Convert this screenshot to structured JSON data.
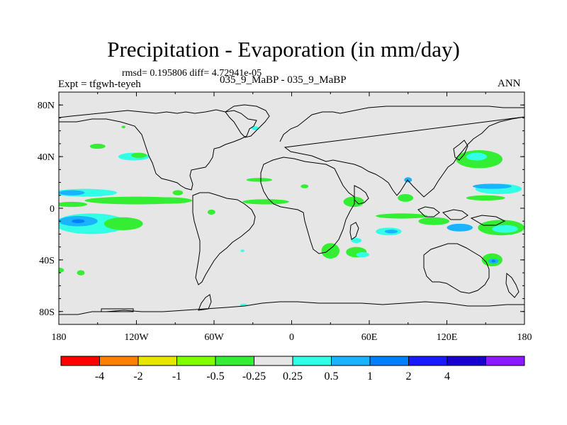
{
  "title": "Precipitation - Evaporation (in mm/day)",
  "stats": "rmsd= 0.195806 diff= 4.72941e-05",
  "expt_label": "Expt = tfgwh-teyeh",
  "subtitle": "035_9_MaBP - 035_9_MaBP",
  "season": "ANN",
  "map": {
    "projection": "cylindrical equidistant",
    "lon_range": [
      -180,
      180
    ],
    "lat_range": [
      -90,
      90
    ],
    "background_color": "#e6e6e6",
    "coastline_color": "#000000"
  },
  "y_ticks": [
    {
      "lat": 80,
      "label": "80N"
    },
    {
      "lat": 40,
      "label": "40N"
    },
    {
      "lat": 0,
      "label": "0"
    },
    {
      "lat": -40,
      "label": "40S"
    },
    {
      "lat": -80,
      "label": "80S"
    }
  ],
  "x_ticks": [
    {
      "lon": -180,
      "label": "180"
    },
    {
      "lon": -120,
      "label": "120W"
    },
    {
      "lon": -60,
      "label": "60W"
    },
    {
      "lon": 0,
      "label": "0"
    },
    {
      "lon": 60,
      "label": "60E"
    },
    {
      "lon": 120,
      "label": "120E"
    },
    {
      "lon": 180,
      "label": "180"
    }
  ],
  "colorbar": {
    "colors": [
      "#ff0000",
      "#ff8000",
      "#e6e600",
      "#80ff00",
      "#33ee33",
      "#e6e6e6",
      "#33ffe6",
      "#1ab3ff",
      "#0080ff",
      "#1a1aff",
      "#1a00cc",
      "#8c1aff"
    ],
    "labels": [
      "-4",
      "-2",
      "-1",
      "-0.5",
      "-0.25",
      "0.25",
      "0.5",
      "1",
      "2",
      "4"
    ]
  },
  "fields": [
    {
      "name": "itcz-pacific-green",
      "color": "#33ee33",
      "lon": -120,
      "lat": 6,
      "rx": 40,
      "ry": 3
    },
    {
      "name": "itcz-pacific-east-green",
      "color": "#33ee33",
      "lon": -95,
      "lat": 6,
      "rx": 18,
      "ry": 2.5
    },
    {
      "name": "north-subtropic-pacific-cyan",
      "color": "#33ffe6",
      "lon": -160,
      "lat": 12,
      "rx": 25,
      "ry": 3
    },
    {
      "name": "north-subtropic-pacific-blue",
      "color": "#1ab3ff",
      "lon": -170,
      "lat": 12,
      "rx": 10,
      "ry": 2
    },
    {
      "name": "itcz-pacific-west-green",
      "color": "#33ee33",
      "lon": -170,
      "lat": 3,
      "rx": 12,
      "ry": 2
    },
    {
      "name": "south-pacific-cyan",
      "color": "#33ffe6",
      "lon": -155,
      "lat": -12,
      "rx": 28,
      "ry": 8
    },
    {
      "name": "south-pacific-blue",
      "color": "#1ab3ff",
      "lon": -165,
      "lat": -10,
      "rx": 15,
      "ry": 4
    },
    {
      "name": "south-pacific-deep",
      "color": "#0080ff",
      "lon": -165,
      "lat": -10,
      "rx": 5,
      "ry": 1.5
    },
    {
      "name": "south-pacific-east-green",
      "color": "#33ee33",
      "lon": -130,
      "lat": -12,
      "rx": 15,
      "ry": 5
    },
    {
      "name": "north-pacific-green",
      "color": "#33ee33",
      "lon": -150,
      "lat": 48,
      "rx": 6,
      "ry": 2
    },
    {
      "name": "north-pacific-cyan",
      "color": "#33ffe6",
      "lon": -122,
      "lat": 40,
      "rx": 12,
      "ry": 3
    },
    {
      "name": "north-pacific-green-2",
      "color": "#33ee33",
      "lon": -118,
      "lat": 41,
      "rx": 6,
      "ry": 2
    },
    {
      "name": "aleutian-green",
      "color": "#33ee33",
      "lon": -180,
      "lat": -48,
      "rx": 4,
      "ry": 2
    },
    {
      "name": "south-pacific-small",
      "color": "#33ee33",
      "lon": -163,
      "lat": -50,
      "rx": 3,
      "ry": 2
    },
    {
      "name": "atlantic-itcz-green",
      "color": "#33ee33",
      "lon": -20,
      "lat": 5,
      "rx": 18,
      "ry": 2
    },
    {
      "name": "atlantic-green",
      "color": "#33ee33",
      "lon": -25,
      "lat": 22,
      "rx": 10,
      "ry": 1.5
    },
    {
      "name": "amazon-green",
      "color": "#33ee33",
      "lon": -62,
      "lat": -3,
      "rx": 3,
      "ry": 2
    },
    {
      "name": "africa-green",
      "color": "#33ee33",
      "lon": 48,
      "lat": 5,
      "rx": 8,
      "ry": 4
    },
    {
      "name": "indian-equatorial-green",
      "color": "#33ee33",
      "lon": 85,
      "lat": -6,
      "rx": 20,
      "ry": 2
    },
    {
      "name": "indian-green",
      "color": "#33ee33",
      "lon": 88,
      "lat": 8,
      "rx": 6,
      "ry": 3
    },
    {
      "name": "indian-south-cyan",
      "color": "#33ffe6",
      "lon": 75,
      "lat": -18,
      "rx": 10,
      "ry": 3
    },
    {
      "name": "indian-south-blue",
      "color": "#1ab3ff",
      "lon": 77,
      "lat": -18,
      "rx": 5,
      "ry": 1.5
    },
    {
      "name": "maritime-green",
      "color": "#33ee33",
      "lon": 110,
      "lat": -10,
      "rx": 12,
      "ry": 3
    },
    {
      "name": "maritime-blue",
      "color": "#1ab3ff",
      "lon": 130,
      "lat": -15,
      "rx": 10,
      "ry": 3
    },
    {
      "name": "west-pacific-cyan",
      "color": "#33ffe6",
      "lon": 160,
      "lat": 15,
      "rx": 18,
      "ry": 4
    },
    {
      "name": "west-pacific-blue",
      "color": "#1ab3ff",
      "lon": 155,
      "lat": 17,
      "rx": 15,
      "ry": 2
    },
    {
      "name": "west-pacific-green",
      "color": "#33ee33",
      "lon": 150,
      "lat": 8,
      "rx": 15,
      "ry": 2
    },
    {
      "name": "south-pacific-convergence-green",
      "color": "#33ee33",
      "lon": 162,
      "lat": -15,
      "rx": 18,
      "ry": 6
    },
    {
      "name": "south-pacific-convergence-cyan",
      "color": "#33ffe6",
      "lon": 165,
      "lat": -16,
      "rx": 10,
      "ry": 3
    },
    {
      "name": "kuroshio-green",
      "color": "#33ee33",
      "lon": 145,
      "lat": 38,
      "rx": 18,
      "ry": 7
    },
    {
      "name": "kuroshio-cyan",
      "color": "#33ffe6",
      "lon": 143,
      "lat": 40,
      "rx": 8,
      "ry": 3
    },
    {
      "name": "south-africa-green",
      "color": "#33ee33",
      "lon": 30,
      "lat": -33,
      "rx": 7,
      "ry": 6
    },
    {
      "name": "south-atlantic-green",
      "color": "#33ee33",
      "lon": 50,
      "lat": -34,
      "rx": 8,
      "ry": 4
    },
    {
      "name": "south-atlantic-cyan",
      "color": "#33ffe6",
      "lon": 55,
      "lat": -36,
      "rx": 5,
      "ry": 2
    },
    {
      "name": "south-australia-green",
      "color": "#33ee33",
      "lon": 155,
      "lat": -40,
      "rx": 8,
      "ry": 5
    },
    {
      "name": "south-australia-blue",
      "color": "#1ab3ff",
      "lon": 156,
      "lat": -41,
      "rx": 4,
      "ry": 2
    },
    {
      "name": "south-australia-deep",
      "color": "#0080ff",
      "lon": 156,
      "lat": -41,
      "rx": 1.5,
      "ry": 1
    },
    {
      "name": "south-indian-cyan",
      "color": "#33ffe6",
      "lon": 50,
      "lat": -25,
      "rx": 4,
      "ry": 2
    },
    {
      "name": "antarctic-cyan",
      "color": "#33ffe6",
      "lon": -37,
      "lat": -75,
      "rx": 3,
      "ry": 1
    },
    {
      "name": "greenland-cyan",
      "color": "#33ffe6",
      "lon": -28,
      "lat": 62,
      "rx": 3,
      "ry": 1.5
    },
    {
      "name": "greenland-green",
      "color": "#33ee33",
      "lon": -130,
      "lat": 63,
      "rx": 1.5,
      "ry": 1
    },
    {
      "name": "central-america-green",
      "color": "#33ee33",
      "lon": -88,
      "lat": 12,
      "rx": 4,
      "ry": 2
    },
    {
      "name": "caribbean-green",
      "color": "#33ee33",
      "lon": 10,
      "lat": 17,
      "rx": 3,
      "ry": 1.5
    },
    {
      "name": "amazon-cyan",
      "color": "#33ffe6",
      "lon": -38,
      "lat": -33,
      "rx": 1.5,
      "ry": 1
    },
    {
      "name": "india-blue",
      "color": "#1ab3ff",
      "lon": 90,
      "lat": 22,
      "rx": 3,
      "ry": 2
    }
  ]
}
